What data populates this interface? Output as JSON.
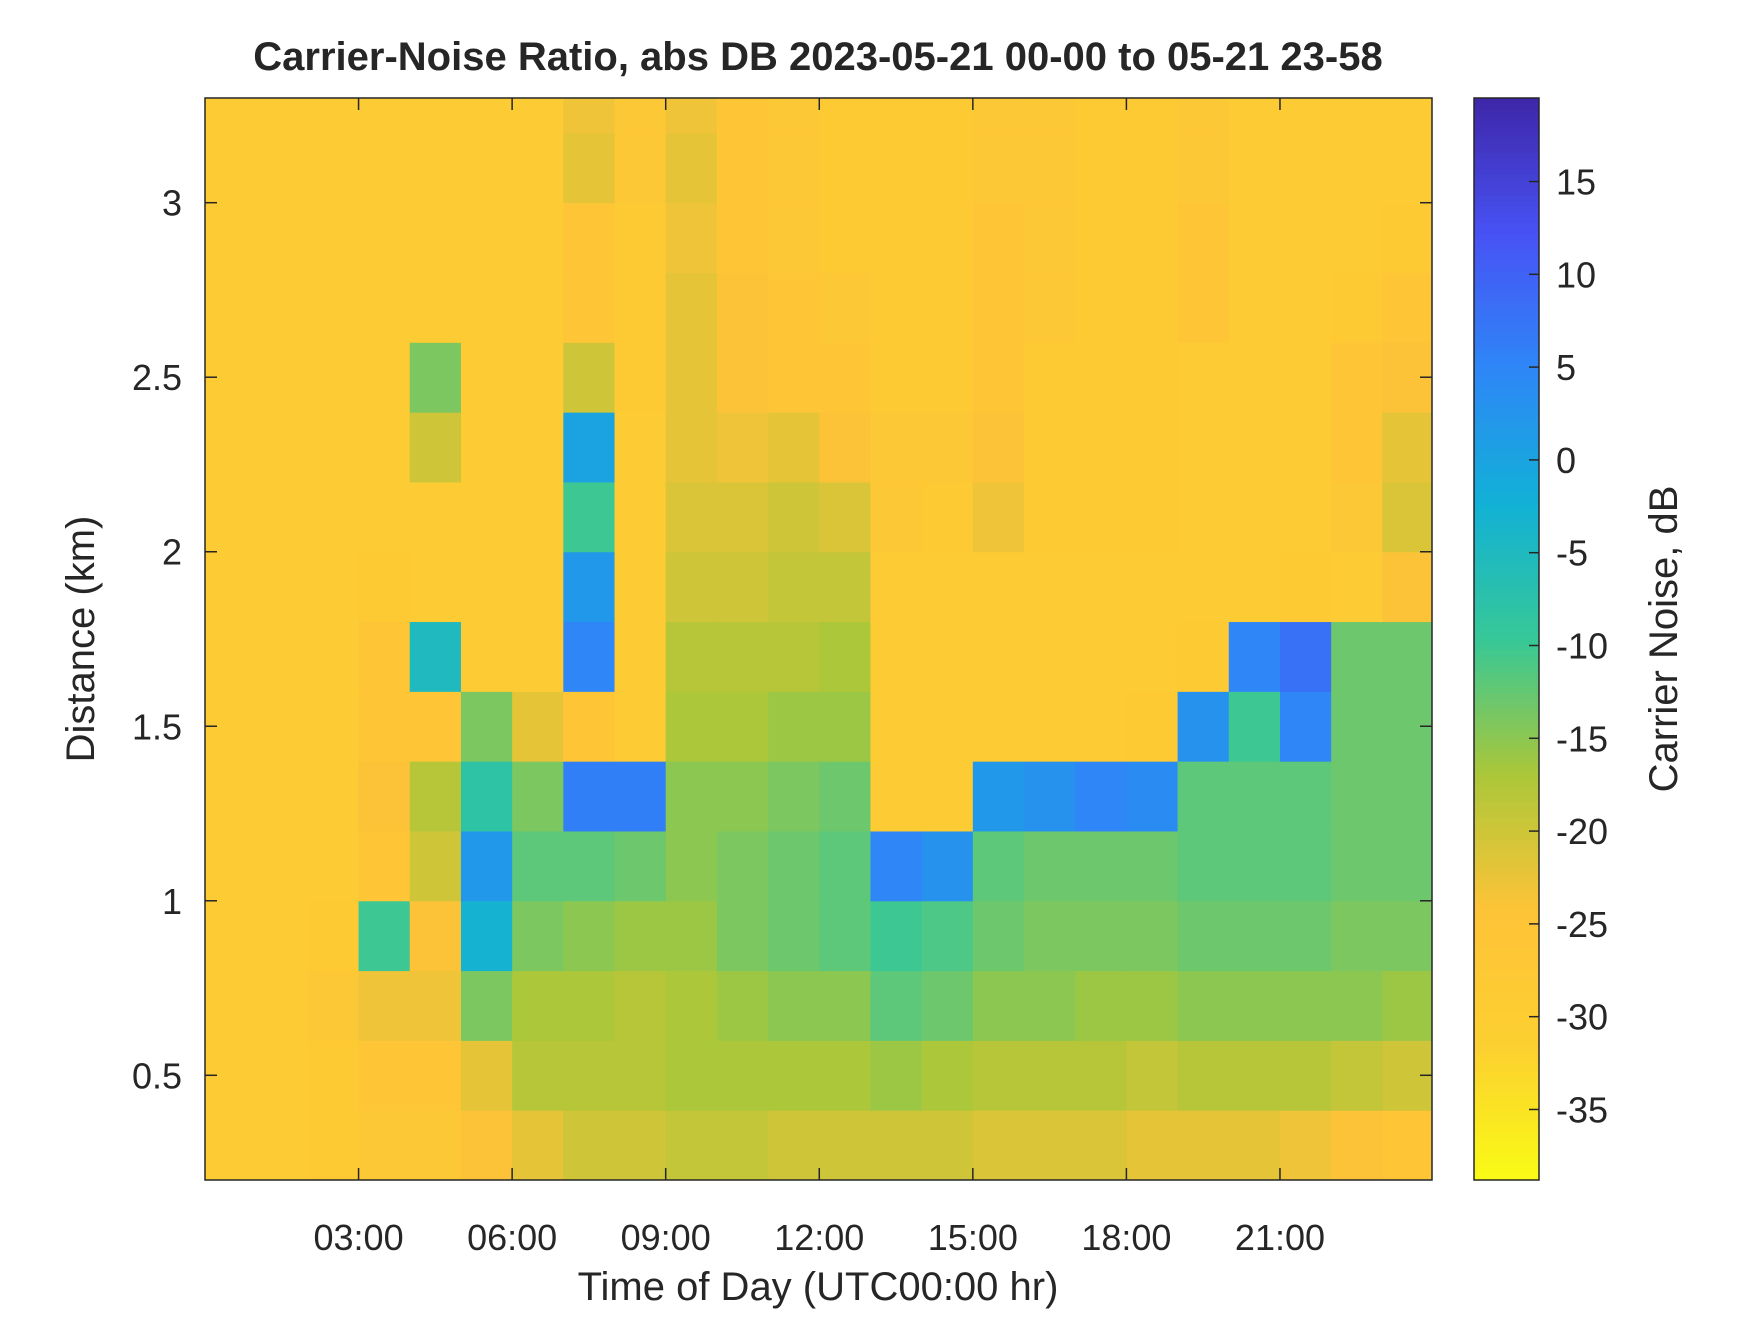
{
  "chart_data": {
    "type": "heatmap",
    "title": "Carrier-Noise Ratio, abs DB 2023-05-21 00-00 to 05-21 23-58",
    "x_label": "Time of Day (UTC00:00 hr)",
    "y_label": "Distance (km)",
    "colorbar_label": "Carrier Noise, dB",
    "colormap": "parula",
    "reverse_colormap": true,
    "x": [
      0.5,
      1.5,
      2.5,
      3.5,
      4.5,
      5.5,
      6.5,
      7.5,
      8.5,
      9.5,
      10.5,
      11.5,
      12.5,
      13.5,
      14.5,
      15.5,
      16.5,
      17.5,
      18.5,
      19.5,
      20.5,
      21.5,
      22.5,
      23.5
    ],
    "y": [
      0.3,
      0.5,
      0.7,
      0.9,
      1.1,
      1.3,
      1.5,
      1.7,
      1.9,
      2.1,
      2.3,
      2.5,
      2.7,
      2.9,
      3.1,
      3.3
    ],
    "z": [
      [
        -29,
        -29,
        -28,
        -27,
        -27,
        -24,
        -22,
        -20,
        -20,
        -19,
        -19,
        -20,
        -20,
        -20,
        -20,
        -21,
        -21,
        -21,
        -22,
        -22,
        -22,
        -23,
        -24,
        -25
      ],
      [
        -29,
        -29,
        -28,
        -26,
        -25,
        -22,
        -18,
        -18,
        -18,
        -17,
        -17,
        -17,
        -17,
        -16,
        -17,
        -18,
        -18,
        -18,
        -19,
        -18,
        -18,
        -18,
        -19,
        -20
      ],
      [
        -29,
        -29,
        -27,
        -23,
        -23,
        -14,
        -17,
        -17,
        -18,
        -17,
        -16,
        -15,
        -15,
        -12,
        -13,
        -15,
        -15,
        -16,
        -16,
        -15,
        -15,
        -15,
        -15,
        -16
      ],
      [
        -29,
        -29,
        -28,
        -10,
        -24,
        -3,
        -14,
        -15,
        -16,
        -16,
        -14,
        -13,
        -12,
        -10,
        -11,
        -13,
        -14,
        -14,
        -14,
        -13,
        -13,
        -13,
        -14,
        -14
      ],
      [
        -29,
        -29,
        -29,
        -26,
        -20,
        2,
        -12,
        -12,
        -13,
        -15,
        -14,
        -13,
        -12,
        5,
        3,
        -12,
        -13,
        -13,
        -13,
        -12,
        -12,
        -12,
        -13,
        -13
      ],
      [
        -29,
        -29,
        -29,
        -24,
        -18,
        -8,
        -14,
        6,
        6,
        -15,
        -15,
        -14,
        -13,
        -29,
        -29,
        2,
        3,
        5,
        4,
        -12,
        -12,
        -12,
        -13,
        -13
      ],
      [
        -29,
        -29,
        -29,
        -25,
        -26,
        -14,
        -22,
        -25,
        -29,
        -17,
        -17,
        -16,
        -16,
        -29,
        -29,
        -29,
        -29,
        -29,
        -28,
        3,
        -10,
        5,
        -13,
        -13
      ],
      [
        -29,
        -29,
        -29,
        -25,
        -5,
        -29,
        -29,
        5,
        -29,
        -18,
        -18,
        -18,
        -17,
        -29,
        -29,
        -29,
        -29,
        -29,
        -29,
        -28,
        5,
        8,
        -13,
        -13
      ],
      [
        -29,
        -29,
        -29,
        -28,
        -29,
        -29,
        -29,
        2,
        -29,
        -20,
        -20,
        -19,
        -19,
        -29,
        -29,
        -29,
        -29,
        -29,
        -29,
        -29,
        -29,
        -28,
        -29,
        -24
      ],
      [
        -29,
        -29,
        -29,
        -29,
        -29,
        -29,
        -29,
        -10,
        -29,
        -21,
        -21,
        -20,
        -21,
        -27,
        -28,
        -23,
        -28,
        -28,
        -28,
        -29,
        -29,
        -29,
        -27,
        -21
      ],
      [
        -29,
        -29,
        -29,
        -29,
        -20,
        -29,
        -29,
        0,
        -29,
        -22,
        -23,
        -22,
        -24,
        -27,
        -27,
        -24,
        -28,
        -28,
        -28,
        -29,
        -29,
        -29,
        -26,
        -22
      ],
      [
        -29,
        -29,
        -29,
        -29,
        -14,
        -29,
        -29,
        -20,
        -28,
        -22,
        -24,
        -25,
        -26,
        -28,
        -28,
        -25,
        -28,
        -28,
        -28,
        -29,
        -29,
        -29,
        -26,
        -24
      ],
      [
        -29,
        -29,
        -29,
        -29,
        -29,
        -29,
        -29,
        -25,
        -28,
        -22,
        -24,
        -26,
        -27,
        -28,
        -28,
        -25,
        -27,
        -28,
        -28,
        -26,
        -29,
        -29,
        -28,
        -25
      ],
      [
        -29,
        -29,
        -29,
        -29,
        -29,
        -29,
        -29,
        -26,
        -28,
        -23,
        -25,
        -27,
        -28,
        -28,
        -28,
        -26,
        -27,
        -28,
        -28,
        -26,
        -29,
        -29,
        -29,
        -28
      ],
      [
        -29,
        -29,
        -29,
        -29,
        -29,
        -29,
        -29,
        -22,
        -27,
        -22,
        -25,
        -27,
        -28,
        -28,
        -28,
        -27,
        -27,
        -28,
        -28,
        -27,
        -29,
        -29,
        -29,
        -29
      ],
      [
        -29,
        -29,
        -29,
        -29,
        -29,
        -29,
        -29,
        -23,
        -27,
        -23,
        -25,
        -27,
        -28,
        -28,
        -28,
        -27,
        -27,
        -28,
        -28,
        -27,
        -29,
        -29,
        -29,
        -29
      ]
    ],
    "cell_width": 1,
    "cell_height": 0.2,
    "xlim": [
      0,
      23.97
    ],
    "ylim": [
      0.2,
      3.3
    ],
    "xticks": [
      {
        "value": 3,
        "label": "03:00"
      },
      {
        "value": 6,
        "label": "06:00"
      },
      {
        "value": 9,
        "label": "09:00"
      },
      {
        "value": 12,
        "label": "12:00"
      },
      {
        "value": 15,
        "label": "15:00"
      },
      {
        "value": 18,
        "label": "18:00"
      },
      {
        "value": 21,
        "label": "21:00"
      }
    ],
    "yticks": [
      0.5,
      1,
      1.5,
      2,
      2.5,
      3
    ],
    "clim": [
      -38.8,
      19.5
    ],
    "cticks": [
      15,
      10,
      5,
      0,
      -5,
      -10,
      -15,
      -20,
      -25,
      -30,
      -35
    ]
  }
}
